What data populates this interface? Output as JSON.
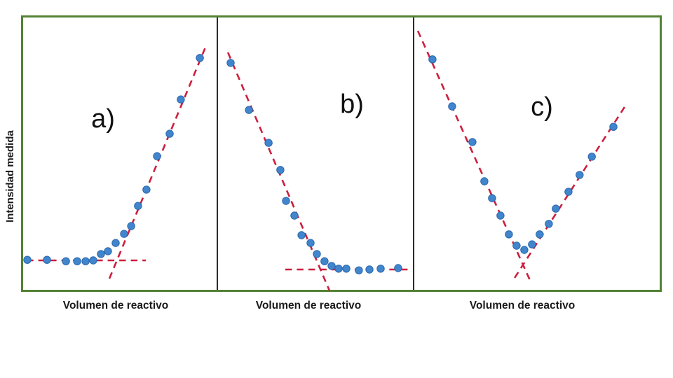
{
  "figure": {
    "background_color": "#ffffff",
    "border_color": "#548235",
    "divider_color": "#2b2b2b",
    "point_color": "#4186cd",
    "dash_color": "#cc1f3e",
    "y_axis_label": "Intensidad medida",
    "x_axis_label": "Volumen de reactivo"
  },
  "chart_data": [
    {
      "type": "scatter",
      "panel_label": "a)",
      "xlabel": "Volumen de reactivo",
      "ylabel": "Intensidad medida",
      "x_range": [
        0,
        100
      ],
      "y_range": [
        0,
        100
      ],
      "units": "arbitrary (percent of panel width/height, no numeric ticks shown)",
      "grid": false,
      "points": [
        [
          3.2,
          11.6
        ],
        [
          13.2,
          11.6
        ],
        [
          22.9,
          11.1
        ],
        [
          28.6,
          11.1
        ],
        [
          32.9,
          11.1
        ],
        [
          36.8,
          11.4
        ],
        [
          40.7,
          13.7
        ],
        [
          44.3,
          14.7
        ],
        [
          48.2,
          17.7
        ],
        [
          52.5,
          21.0
        ],
        [
          56.1,
          23.8
        ],
        [
          59.6,
          31.1
        ],
        [
          63.9,
          37.0
        ],
        [
          69.3,
          49.1
        ],
        [
          75.7,
          57.2
        ],
        [
          81.4,
          69.6
        ],
        [
          91.1,
          84.6
        ]
      ],
      "trend_lines": [
        {
          "name": "baseline",
          "x1": 2.9,
          "y1": 11.4,
          "x2": 63.6,
          "y2": 11.4
        },
        {
          "name": "rising-fit",
          "x1": 45.0,
          "y1": 4.8,
          "x2": 94.6,
          "y2": 89.6
        }
      ]
    },
    {
      "type": "scatter",
      "panel_label": "b)",
      "xlabel": "Volumen de reactivo",
      "ylabel": "Intensidad medida",
      "x_range": [
        0,
        100
      ],
      "y_range": [
        0,
        100
      ],
      "units": "arbitrary (percent of panel width/height, no numeric ticks shown)",
      "grid": false,
      "points": [
        [
          6.8,
          82.8
        ],
        [
          16.1,
          65.8
        ],
        [
          26.1,
          53.9
        ],
        [
          32.1,
          44.1
        ],
        [
          35.0,
          32.9
        ],
        [
          39.3,
          27.6
        ],
        [
          42.9,
          20.5
        ],
        [
          47.5,
          17.7
        ],
        [
          50.7,
          13.7
        ],
        [
          54.6,
          11.1
        ],
        [
          58.2,
          9.4
        ],
        [
          61.8,
          8.4
        ],
        [
          65.7,
          8.4
        ],
        [
          72.1,
          7.8
        ],
        [
          77.5,
          8.1
        ],
        [
          83.2,
          8.4
        ],
        [
          92.1,
          8.6
        ]
      ],
      "trend_lines": [
        {
          "name": "falling-fit",
          "x1": 5.4,
          "y1": 86.6,
          "x2": 57.1,
          "y2": 0.5
        },
        {
          "name": "baseline",
          "x1": 34.6,
          "y1": 8.1,
          "x2": 97.5,
          "y2": 8.1
        }
      ]
    },
    {
      "type": "scatter",
      "panel_label": "c)",
      "xlabel": "Volumen de reactivo",
      "ylabel": "Intensidad medida",
      "x_range": [
        0,
        100
      ],
      "y_range": [
        0,
        100
      ],
      "units": "arbitrary (percent of panel width/height, no numeric ticks shown)",
      "grid": false,
      "points": [
        [
          7.6,
          84.1
        ],
        [
          15.5,
          67.1
        ],
        [
          23.7,
          54.2
        ],
        [
          28.5,
          40.0
        ],
        [
          31.6,
          33.9
        ],
        [
          35.0,
          27.6
        ],
        [
          38.4,
          20.8
        ],
        [
          41.5,
          16.7
        ],
        [
          44.6,
          15.2
        ],
        [
          47.7,
          17.2
        ],
        [
          50.8,
          20.8
        ],
        [
          54.5,
          24.6
        ],
        [
          57.3,
          30.1
        ],
        [
          62.4,
          36.2
        ],
        [
          66.9,
          42.3
        ],
        [
          71.8,
          48.9
        ],
        [
          80.5,
          59.7
        ]
      ],
      "trend_lines": [
        {
          "name": "falling-fit",
          "x1": 1.7,
          "y1": 94.4,
          "x2": 47.5,
          "y2": 3.0
        },
        {
          "name": "rising-fit",
          "x1": 40.7,
          "y1": 5.1,
          "x2": 85.3,
          "y2": 67.3
        }
      ]
    }
  ]
}
